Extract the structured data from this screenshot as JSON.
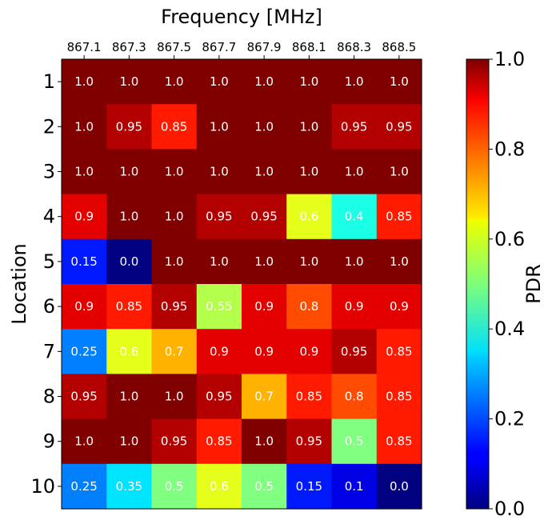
{
  "chart_data": {
    "type": "heatmap",
    "title": "",
    "xlabel": "Frequency [MHz]",
    "ylabel": "Location",
    "colorbar_label": "PDR",
    "colormap": "jet",
    "x_labels": [
      "867.1",
      "867.3",
      "867.5",
      "867.7",
      "867.9",
      "868.1",
      "868.3",
      "868.5"
    ],
    "y_labels": [
      "1",
      "2",
      "3",
      "4",
      "5",
      "6",
      "7",
      "8",
      "9",
      "10"
    ],
    "values": [
      [
        1.0,
        1.0,
        1.0,
        1.0,
        1.0,
        1.0,
        1.0,
        1.0
      ],
      [
        1.0,
        0.95,
        0.85,
        1.0,
        1.0,
        1.0,
        0.95,
        0.95
      ],
      [
        1.0,
        1.0,
        1.0,
        1.0,
        1.0,
        1.0,
        1.0,
        1.0
      ],
      [
        0.9,
        1.0,
        1.0,
        0.95,
        0.95,
        0.6,
        0.4,
        0.85
      ],
      [
        0.15,
        0.0,
        1.0,
        1.0,
        1.0,
        1.0,
        1.0,
        1.0
      ],
      [
        0.9,
        0.85,
        0.95,
        0.55,
        0.9,
        0.8,
        0.9,
        0.9
      ],
      [
        0.25,
        0.6,
        0.7,
        0.9,
        0.9,
        0.9,
        0.95,
        0.85
      ],
      [
        0.95,
        1.0,
        1.0,
        0.95,
        0.7,
        0.85,
        0.8,
        0.85
      ],
      [
        1.0,
        1.0,
        0.95,
        0.85,
        1.0,
        0.95,
        0.5,
        0.85
      ],
      [
        0.25,
        0.35,
        0.5,
        0.6,
        0.5,
        0.15,
        0.1,
        0.0
      ]
    ],
    "value_labels": [
      [
        "1.0",
        "1.0",
        "1.0",
        "1.0",
        "1.0",
        "1.0",
        "1.0",
        "1.0"
      ],
      [
        "1.0",
        "0.95",
        "0.85",
        "1.0",
        "1.0",
        "1.0",
        "0.95",
        "0.95"
      ],
      [
        "1.0",
        "1.0",
        "1.0",
        "1.0",
        "1.0",
        "1.0",
        "1.0",
        "1.0"
      ],
      [
        "0.9",
        "1.0",
        "1.0",
        "0.95",
        "0.95",
        "0.6",
        "0.4",
        "0.85"
      ],
      [
        "0.15",
        "0.0",
        "1.0",
        "1.0",
        "1.0",
        "1.0",
        "1.0",
        "1.0"
      ],
      [
        "0.9",
        "0.85",
        "0.95",
        "0.55",
        "0.9",
        "0.8",
        "0.9",
        "0.9"
      ],
      [
        "0.25",
        "0.6",
        "0.7",
        "0.9",
        "0.9",
        "0.9",
        "0.95",
        "0.85"
      ],
      [
        "0.95",
        "1.0",
        "1.0",
        "0.95",
        "0.7",
        "0.85",
        "0.8",
        "0.85"
      ],
      [
        "1.0",
        "1.0",
        "0.95",
        "0.85",
        "1.0",
        "0.95",
        "0.5",
        "0.85"
      ],
      [
        "0.25",
        "0.35",
        "0.5",
        "0.6",
        "0.5",
        "0.15",
        "0.1",
        "0.0"
      ]
    ],
    "vmin": 0.0,
    "vmax": 1.0,
    "colorbar_ticks": [
      "0.0",
      "0.2",
      "0.4",
      "0.6",
      "0.8",
      "1.0"
    ],
    "legend_position": "right"
  }
}
